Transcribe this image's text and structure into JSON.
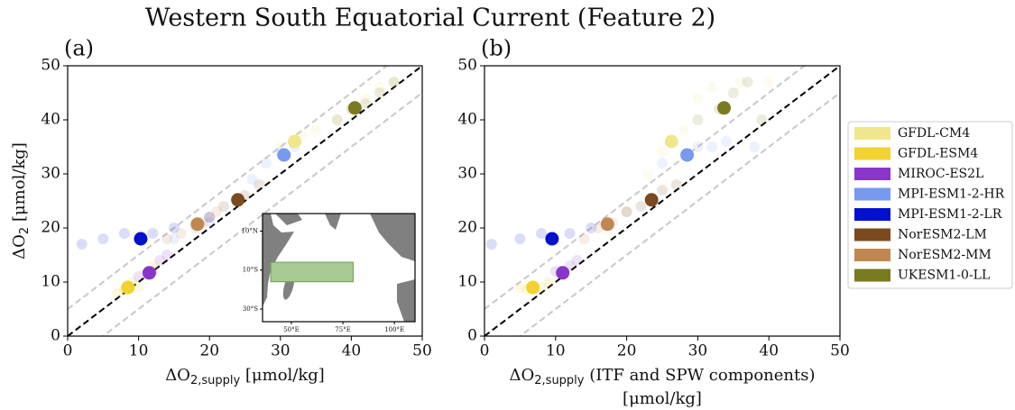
{
  "title": "Western South Equatorial Current (Feature 2)",
  "chart_data": [
    {
      "type": "scatter",
      "panel_label": "(a)",
      "xlabel": {
        "main": "ΔO",
        "sub": "2,supply",
        "rest": " [μmol/kg]"
      },
      "ylabel": {
        "main": "ΔO",
        "sub": "2",
        "rest": " [μmol/kg]"
      },
      "xlim": [
        0,
        50
      ],
      "ylim": [
        0,
        50
      ],
      "xticks": [
        0,
        10,
        20,
        30,
        40,
        50
      ],
      "yticks": [
        0,
        10,
        20,
        30,
        40,
        50
      ],
      "reference_offset": 5,
      "series": [
        {
          "name": "GFDL-CM4",
          "color": "#f0e68c",
          "x": [
            32
          ],
          "values": [
            36
          ],
          "member_x": [
            30,
            33,
            35,
            38,
            42,
            44,
            46
          ],
          "member_values": [
            35,
            37,
            38,
            40,
            44,
            46,
            47
          ]
        },
        {
          "name": "GFDL-ESM4",
          "color": "#f2d22e",
          "x": [
            8.5
          ],
          "values": [
            9
          ],
          "member_x": [
            7,
            9,
            10,
            8,
            12
          ],
          "member_values": [
            8,
            10,
            9,
            8.5,
            13
          ]
        },
        {
          "name": "MIROC-ES2L",
          "color": "#8a35c9",
          "x": [
            11.5
          ],
          "values": [
            11.7
          ],
          "member_x": [
            10,
            12,
            13,
            14
          ],
          "member_values": [
            11,
            12,
            14,
            15
          ]
        },
        {
          "name": "MPI-ESM1-2-HR",
          "color": "#7799ee",
          "x": [
            30.5
          ],
          "values": [
            33.5
          ],
          "member_x": [
            20,
            26,
            30,
            32,
            28,
            15,
            18
          ],
          "member_values": [
            21,
            29,
            34,
            35,
            32,
            18,
            20
          ]
        },
        {
          "name": "MPI-ESM1-2-LR",
          "color": "#0011cc",
          "x": [
            10.3
          ],
          "values": [
            18
          ],
          "member_x": [
            2,
            5,
            8,
            12,
            15,
            20
          ],
          "member_values": [
            17,
            18,
            19,
            19,
            20,
            22
          ]
        },
        {
          "name": "NorESM2-LM",
          "color": "#7b4a1e",
          "x": [
            24
          ],
          "values": [
            25.2
          ],
          "member_x": [
            22,
            25,
            27,
            20
          ],
          "member_values": [
            24,
            26,
            28,
            22
          ]
        },
        {
          "name": "NorESM2-MM",
          "color": "#c08850",
          "x": [
            18.3
          ],
          "values": [
            20.7
          ],
          "member_x": [
            16,
            19,
            21,
            14
          ],
          "member_values": [
            19,
            21,
            23,
            18
          ]
        },
        {
          "name": "UKESM1-0-LL",
          "color": "#7a7a1e",
          "x": [
            40.5
          ],
          "values": [
            42.2
          ],
          "member_x": [
            38,
            40,
            42,
            44,
            46
          ],
          "member_values": [
            40,
            42,
            43,
            45,
            47
          ]
        }
      ],
      "inset": {
        "xlim": [
          36,
          110
        ],
        "ylim": [
          -36.5,
          19
        ],
        "xticks": [
          {
            "value": 50,
            "label": "50°E"
          },
          {
            "value": 75,
            "label": "75°E"
          },
          {
            "value": 100,
            "label": "100°E"
          }
        ],
        "yticks": [
          {
            "value": 10,
            "label": "10°N"
          },
          {
            "value": -10,
            "label": "10°S"
          },
          {
            "value": -30,
            "label": "30°S"
          }
        ],
        "region_lon": [
          40,
          80
        ],
        "region_lat": [
          -16,
          -6
        ],
        "region_color": "#a8c994"
      }
    },
    {
      "type": "scatter",
      "panel_label": "(b)",
      "xlabel": {
        "main": "ΔO",
        "sub": "2,supply",
        "rest": " (ITF and SPW components)",
        "line2": "[μmol/kg]"
      },
      "xlim": [
        0,
        50
      ],
      "ylim": [
        0,
        50
      ],
      "xticks": [
        0,
        10,
        20,
        30,
        40,
        50
      ],
      "yticks": [
        0,
        10,
        20,
        30,
        40,
        50
      ],
      "reference_offset": 5,
      "series": [
        {
          "name": "GFDL-CM4",
          "color": "#f0e68c",
          "x": [
            26.3
          ],
          "values": [
            36
          ],
          "member_x": [
            25,
            28,
            30,
            32,
            36,
            40,
            23
          ],
          "member_values": [
            34,
            38,
            44,
            46,
            47,
            47,
            30
          ]
        },
        {
          "name": "GFDL-ESM4",
          "color": "#f2d22e",
          "x": [
            6.8
          ],
          "values": [
            9
          ],
          "member_x": [
            5,
            6,
            8,
            9
          ],
          "member_values": [
            9,
            8.5,
            9,
            10
          ]
        },
        {
          "name": "MIROC-ES2L",
          "color": "#8a35c9",
          "x": [
            11
          ],
          "values": [
            11.7
          ],
          "member_x": [
            10,
            12,
            13
          ],
          "member_values": [
            12,
            13,
            14
          ]
        },
        {
          "name": "MPI-ESM1-2-HR",
          "color": "#7799ee",
          "x": [
            28.5
          ],
          "values": [
            33.5
          ],
          "member_x": [
            25,
            30,
            32,
            34,
            38
          ],
          "member_values": [
            32,
            35,
            35,
            36,
            35
          ]
        },
        {
          "name": "MPI-ESM1-2-LR",
          "color": "#0011cc",
          "x": [
            9.5
          ],
          "values": [
            18
          ],
          "member_x": [
            1,
            5,
            8,
            12,
            15
          ],
          "member_values": [
            17,
            18,
            19,
            19,
            20
          ]
        },
        {
          "name": "NorESM2-LM",
          "color": "#7b4a1e",
          "x": [
            23.5
          ],
          "values": [
            25.2
          ],
          "member_x": [
            20,
            22,
            25,
            27
          ],
          "member_values": [
            23,
            24,
            27,
            28
          ]
        },
        {
          "name": "NorESM2-MM",
          "color": "#c08850",
          "x": [
            17.3
          ],
          "values": [
            20.7
          ],
          "member_x": [
            14,
            16,
            18,
            20
          ],
          "member_values": [
            18,
            20,
            21,
            23
          ]
        },
        {
          "name": "UKESM1-0-LL",
          "color": "#7a7a1e",
          "x": [
            33.7
          ],
          "values": [
            42.2
          ],
          "member_x": [
            30,
            33,
            35,
            37,
            39
          ],
          "member_values": [
            40,
            42,
            45,
            47,
            40
          ]
        }
      ]
    }
  ]
}
